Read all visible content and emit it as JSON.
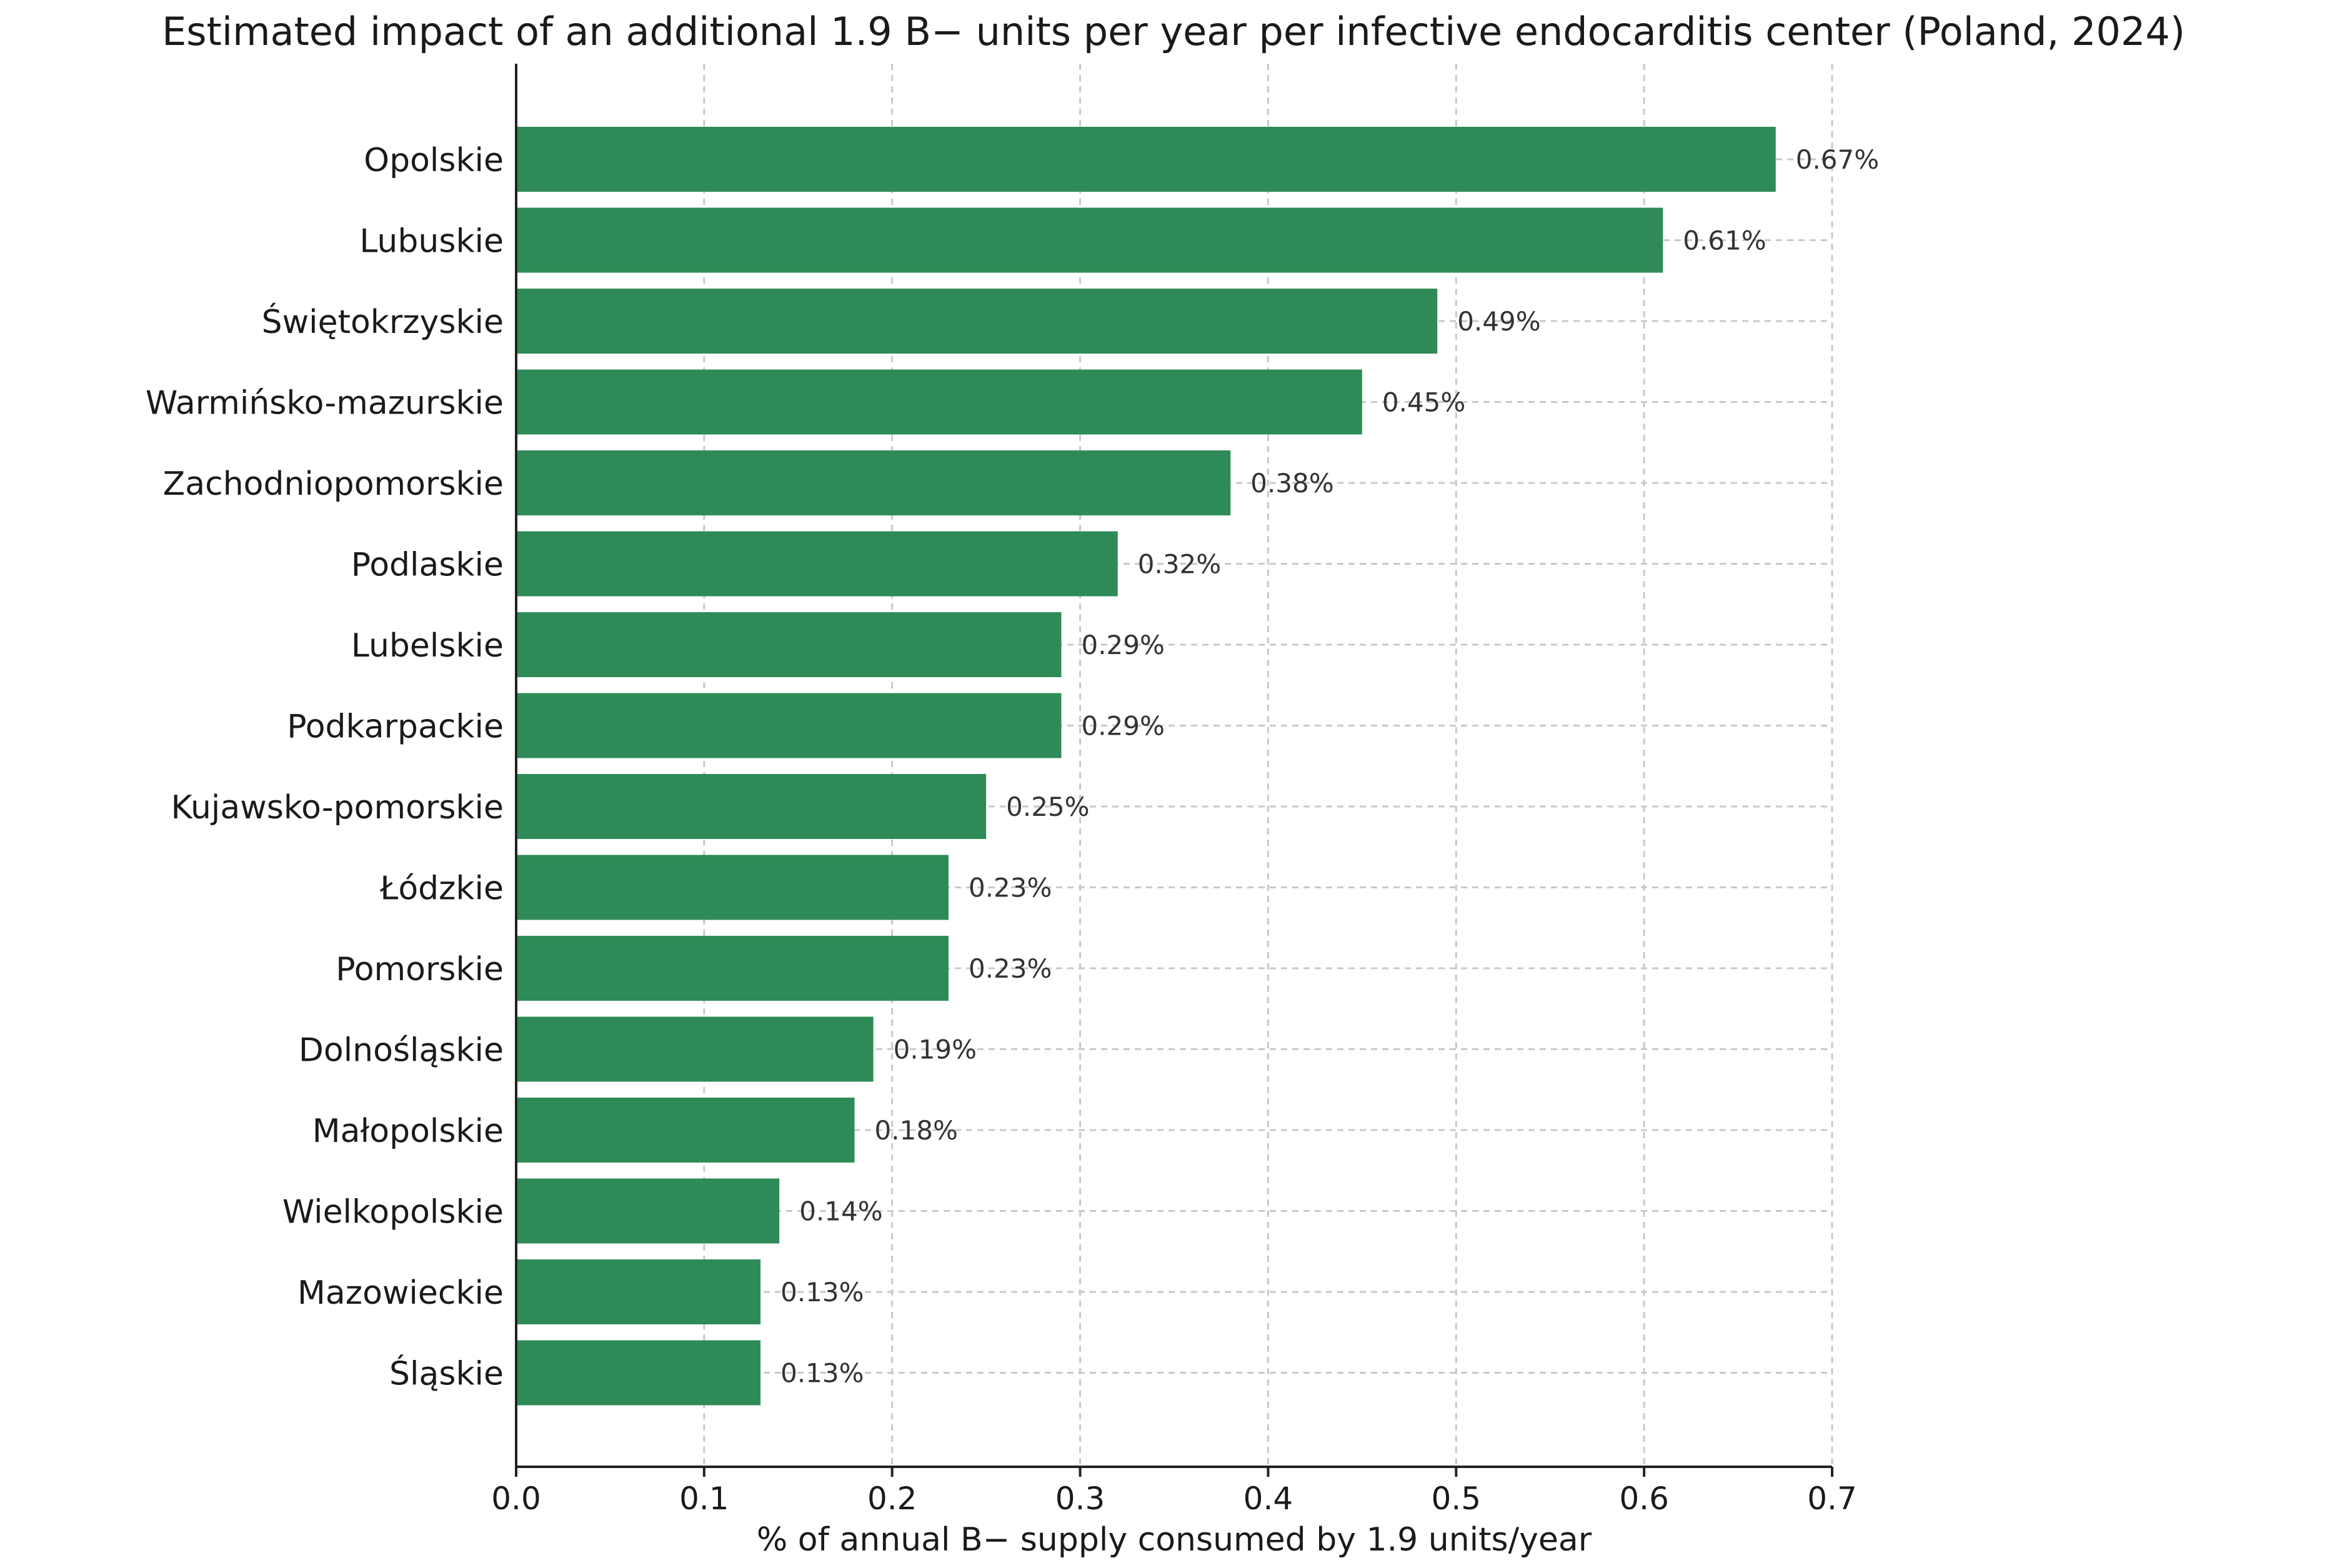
{
  "chart_data": {
    "type": "bar",
    "orientation": "horizontal",
    "title": "Estimated impact of an additional 1.9 B− units per year per infective endocarditis center (Poland, 2024)",
    "xlabel": "% of annual B− supply consumed by 1.9 units/year",
    "ylabel": "",
    "xlim": [
      0,
      0.7
    ],
    "xticks": [
      0.0,
      0.1,
      0.2,
      0.3,
      0.4,
      0.5,
      0.6,
      0.7
    ],
    "xtick_labels": [
      "0.0",
      "0.1",
      "0.2",
      "0.3",
      "0.4",
      "0.5",
      "0.6",
      "0.7"
    ],
    "grid": true,
    "bar_color": "#2e8b57",
    "categories": [
      "Opolskie",
      "Lubuskie",
      "Świętokrzyskie",
      "Warmińsko-mazurskie",
      "Zachodniopomorskie",
      "Podlaskie",
      "Lubelskie",
      "Podkarpackie",
      "Kujawsko-pomorskie",
      "Łódzkie",
      "Pomorskie",
      "Dolnośląskie",
      "Małopolskie",
      "Wielkopolskie",
      "Mazowieckie",
      "Śląskie"
    ],
    "values": [
      0.67,
      0.61,
      0.49,
      0.45,
      0.38,
      0.32,
      0.29,
      0.29,
      0.25,
      0.23,
      0.23,
      0.19,
      0.18,
      0.14,
      0.13,
      0.13
    ],
    "data_labels": [
      "0.67%",
      "0.61%",
      "0.49%",
      "0.45%",
      "0.38%",
      "0.32%",
      "0.29%",
      "0.29%",
      "0.25%",
      "0.23%",
      "0.23%",
      "0.19%",
      "0.18%",
      "0.14%",
      "0.13%",
      "0.13%"
    ]
  }
}
